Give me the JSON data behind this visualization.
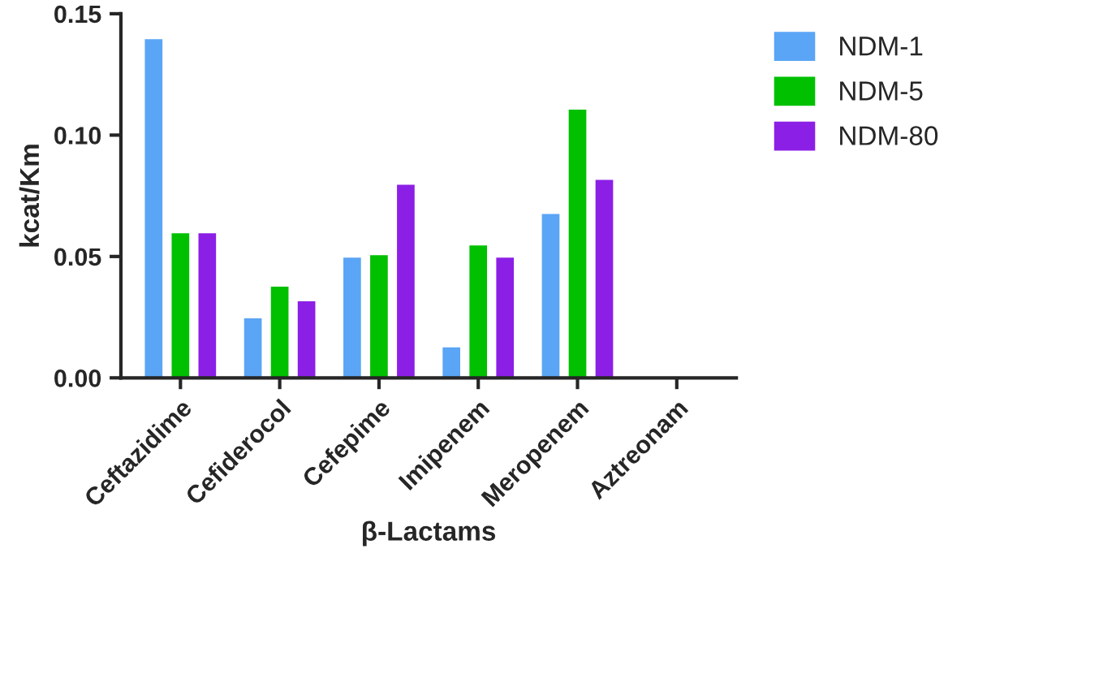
{
  "chart_data": {
    "type": "bar",
    "xlabel": "β-Lactams",
    "ylabel": "kcat/Km",
    "categories": [
      "Ceftazidime",
      "Cefiderocol",
      "Cefepime",
      "Imipenem",
      "Meropenem",
      "Aztreonam"
    ],
    "series": [
      {
        "name": "NDM-1",
        "color": "#5aa5f5",
        "values": [
          0.14,
          0.025,
          0.05,
          0.013,
          0.068,
          null
        ]
      },
      {
        "name": "NDM-5",
        "color": "#00c000",
        "values": [
          0.06,
          0.038,
          0.051,
          0.055,
          0.111,
          null
        ]
      },
      {
        "name": "NDM-80",
        "color": "#8c1fe6",
        "values": [
          0.06,
          0.032,
          0.08,
          0.05,
          0.082,
          null
        ]
      }
    ],
    "ylim": [
      0,
      0.15
    ],
    "yticks": [
      {
        "value": 0,
        "label": "0.00"
      },
      {
        "value": 0.05,
        "label": "0.05"
      },
      {
        "value": 0.1,
        "label": "0.10"
      },
      {
        "value": 0.15,
        "label": "0.15"
      }
    ],
    "grid": false,
    "legend": "top right"
  }
}
